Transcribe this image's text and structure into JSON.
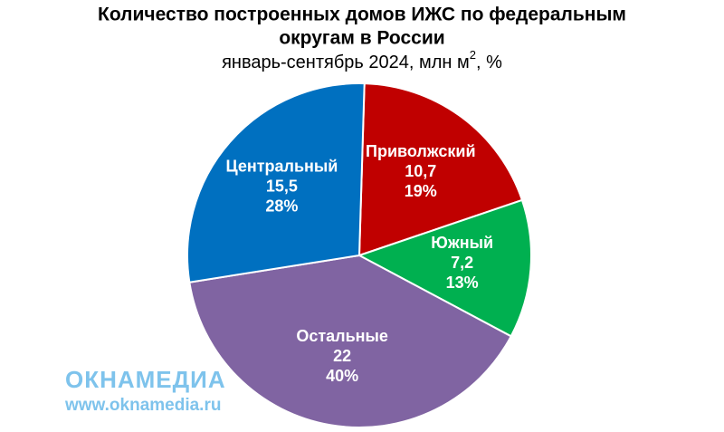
{
  "chart_data": {
    "type": "pie",
    "title": [
      "Количество построенных домов ИЖС по федеральным",
      "округам в России"
    ],
    "subtitle": {
      "text": "январь-сентябрь 2024, млн м",
      "superscript": "2",
      "suffix": ", %"
    },
    "categories": [
      "Приволжский",
      "Южный",
      "Остальные",
      "Центральный"
    ],
    "values": [
      10.7,
      7.2,
      22,
      15.5
    ],
    "value_labels": [
      "10,7",
      "7,2",
      "22",
      "15,5"
    ],
    "percents": [
      19,
      13,
      40,
      28
    ],
    "percent_labels": [
      "19%",
      "13%",
      "40%",
      "28%"
    ],
    "colors": [
      "#c00000",
      "#00b050",
      "#8064a2",
      "#0070c0"
    ],
    "watermark": {
      "logo": "ОКНАМЕДИА",
      "url": "www.oknamedia.ru"
    }
  }
}
